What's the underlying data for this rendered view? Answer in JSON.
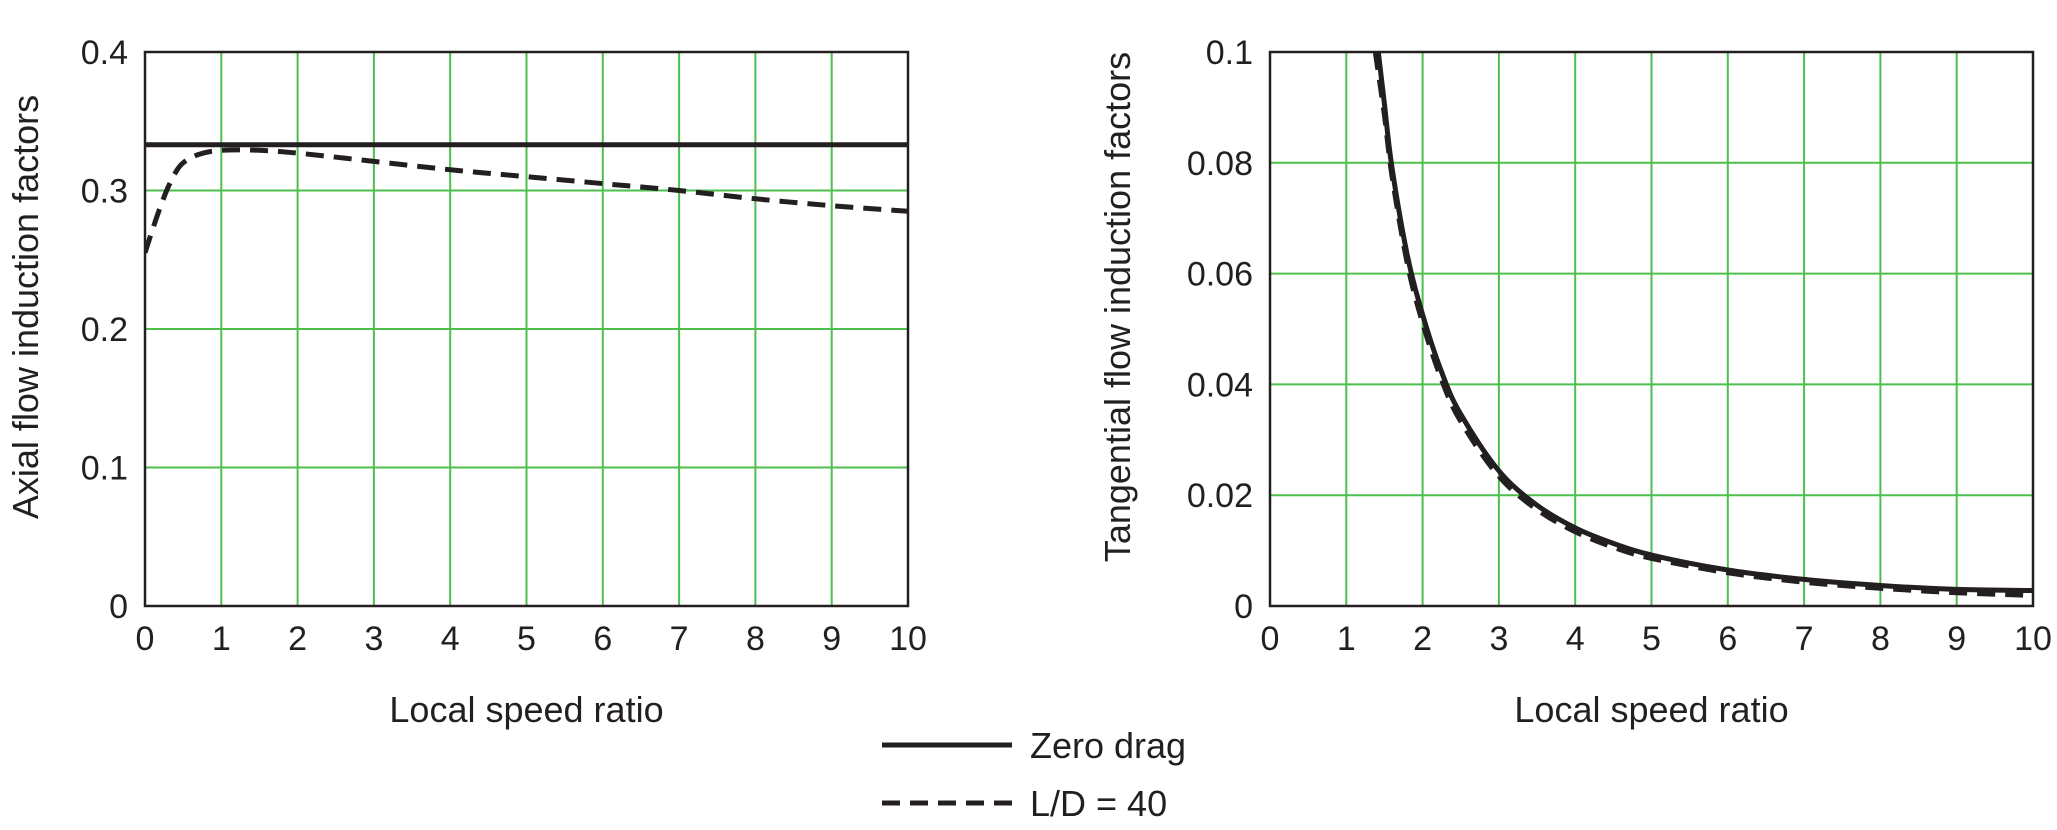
{
  "chart_data": [
    {
      "type": "line",
      "xlabel": "Local speed ratio",
      "ylabel": "Axial flow induction factors",
      "xlim": [
        0,
        10
      ],
      "ylim": [
        0,
        0.4
      ],
      "xticks": [
        "0",
        "1",
        "2",
        "3",
        "4",
        "5",
        "6",
        "7",
        "8",
        "9",
        "10"
      ],
      "yticks": [
        "0",
        "0.1",
        "0.2",
        "0.3",
        "0.4"
      ],
      "grid": true,
      "grid_color": "#4dbf4d",
      "series": [
        {
          "name": "Zero drag",
          "style": "solid",
          "x": [
            0,
            10
          ],
          "y": [
            0.333,
            0.333
          ]
        },
        {
          "name": "L/D = 40",
          "style": "dashed",
          "x": [
            0,
            0.1,
            0.2,
            0.3,
            0.4,
            0.5,
            0.7,
            1,
            1.5,
            2,
            3,
            4,
            5,
            6,
            7,
            8,
            9,
            10
          ],
          "y": [
            0.255,
            0.272,
            0.288,
            0.302,
            0.313,
            0.32,
            0.326,
            0.329,
            0.329,
            0.327,
            0.321,
            0.315,
            0.31,
            0.305,
            0.3,
            0.294,
            0.289,
            0.285
          ]
        }
      ]
    },
    {
      "type": "line",
      "xlabel": "Local speed ratio",
      "ylabel": "Tangential flow induction factors",
      "xlim": [
        0,
        10
      ],
      "ylim": [
        0,
        0.1
      ],
      "xticks": [
        "0",
        "1",
        "2",
        "3",
        "4",
        "5",
        "6",
        "7",
        "8",
        "9",
        "10"
      ],
      "yticks": [
        "0",
        "0.02",
        "0.04",
        "0.06",
        "0.08",
        "0.1"
      ],
      "grid": true,
      "grid_color": "#4dbf4d",
      "series": [
        {
          "name": "Zero drag",
          "style": "solid",
          "x": [
            1.42,
            1.5,
            1.6,
            1.8,
            2,
            2.25,
            2.5,
            3,
            3.5,
            4,
            4.5,
            5,
            6,
            7,
            8,
            9,
            10
          ],
          "y": [
            0.1,
            0.0905,
            0.079,
            0.0633,
            0.0526,
            0.0422,
            0.0346,
            0.0244,
            0.0182,
            0.0141,
            0.0113,
            0.0092,
            0.0065,
            0.0048,
            0.0037,
            0.003,
            0.0028
          ]
        },
        {
          "name": "L/D = 40",
          "style": "dashed",
          "x": [
            1.38,
            1.5,
            1.6,
            1.8,
            2,
            2.25,
            2.5,
            3,
            3.5,
            4,
            4.5,
            5,
            6,
            7,
            8,
            9,
            10
          ],
          "y": [
            0.1,
            0.0885,
            0.0775,
            0.0618,
            0.0511,
            0.0408,
            0.0333,
            0.0234,
            0.0174,
            0.0134,
            0.0106,
            0.0086,
            0.006,
            0.0043,
            0.0032,
            0.0024,
            0.0019
          ]
        }
      ]
    }
  ],
  "legend": {
    "items": [
      {
        "label": "Zero drag",
        "style": "solid"
      },
      {
        "label": "L/D = 40",
        "style": "dashed"
      }
    ]
  },
  "colors": {
    "line": "#231f20",
    "grid": "#4dbf4d",
    "text": "#231f20",
    "background": "#ffffff"
  }
}
